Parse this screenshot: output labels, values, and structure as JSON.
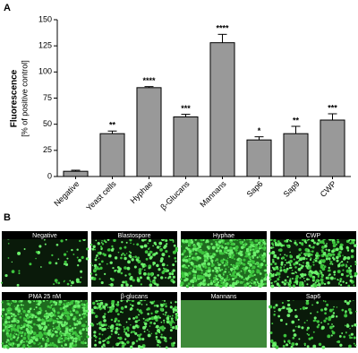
{
  "panel_labels": [
    "A",
    "B"
  ],
  "chart_data": {
    "type": "bar",
    "ylabel": [
      "Fluorescence",
      "[% of positive control]"
    ],
    "categories": [
      "Negative",
      "Yeast cells",
      "Hyphae",
      "β-Glucans",
      "Mannans",
      "Sap6",
      "Sap9",
      "CWP"
    ],
    "values": [
      5,
      41,
      85,
      57,
      128,
      35,
      41,
      54
    ],
    "errors": [
      1,
      2.5,
      1,
      2.5,
      8,
      3,
      7,
      6
    ],
    "annotations": [
      null,
      "**",
      "****",
      "***",
      "****",
      "*",
      "**",
      "***"
    ],
    "color": "#999999",
    "ylim": [
      0,
      150
    ],
    "yticks": [
      0,
      25,
      50,
      75,
      100,
      125,
      150
    ]
  },
  "images": [
    "Negative",
    "Blastospore",
    "Hyphae",
    "CWP",
    "PMA 25 nM",
    "β-glucans",
    "Mannans",
    "Sap6"
  ]
}
